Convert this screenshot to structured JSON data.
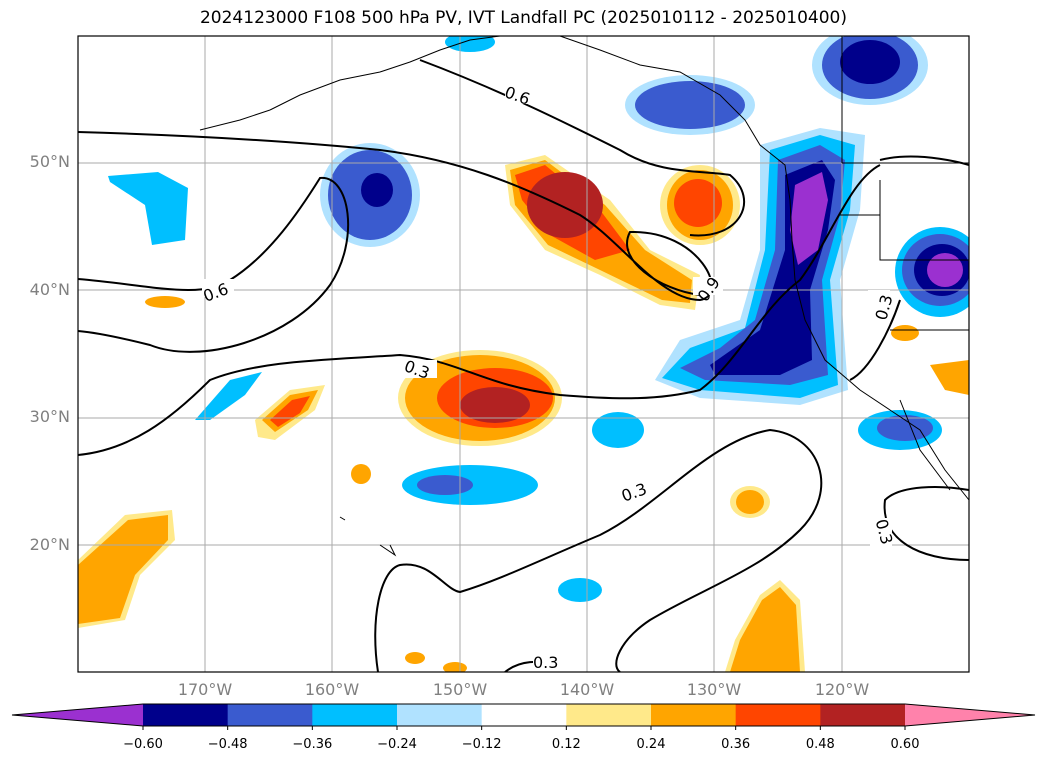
{
  "title": "2024123000 F108 500 hPa PV, IVT Landfall PC (2025010112 - 2025010400)",
  "lat_labels": [
    "50°N",
    "40°N",
    "30°N",
    "20°N"
  ],
  "lon_labels": [
    "170°W",
    "160°W",
    "150°W",
    "140°W",
    "130°W",
    "120°W"
  ],
  "contour_labels": [
    "0.6",
    "0.6",
    "0.9",
    "0.3",
    "0.3",
    "0.3",
    "0.3",
    "0.3"
  ],
  "colorbar": {
    "colors": [
      "#9b30d0",
      "#00008b",
      "#3a5bcf",
      "#00bfff",
      "#b0e2ff",
      "#ffffff",
      "#ffe98a",
      "#ffa500",
      "#ff4500",
      "#b22222",
      "#ff82ab"
    ],
    "tick_labels": [
      "−0.60",
      "−0.48",
      "−0.36",
      "−0.24",
      "−0.12",
      "0.12",
      "0.24",
      "0.36",
      "0.48",
      "0.60"
    ]
  },
  "map": {
    "domain": "North Pacific",
    "lat_range": [
      10,
      60
    ],
    "lon_range": [
      -180,
      -110
    ],
    "projection": "PlateCarree"
  }
}
